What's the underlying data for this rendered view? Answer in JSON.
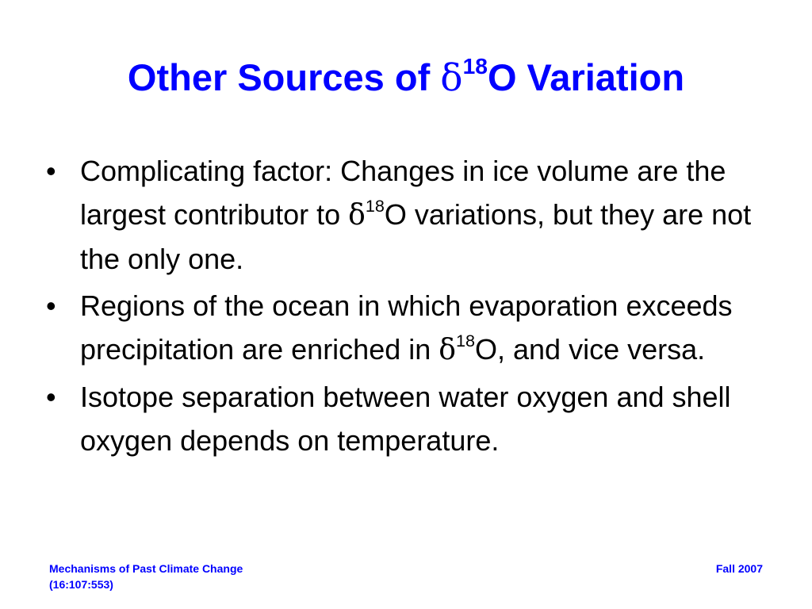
{
  "title": {
    "prefix": "Other Sources of ",
    "symbol": "δ",
    "superscript": "18",
    "suffix": "O Variation"
  },
  "bullets": [
    {
      "marker": "•",
      "before": "Complicating factor: Changes in ice volume are the largest contributor to ",
      "symbol": "δ",
      "superscript": "18",
      "after": "O variations, but they are not the only one."
    },
    {
      "marker": "•",
      "before": "Regions of the ocean in which evaporation exceeds precipitation are enriched in ",
      "symbol": "δ",
      "superscript": "18",
      "after": "O, and vice versa."
    },
    {
      "marker": "•",
      "text": "Isotope separation between water oxygen and shell oxygen depends on temperature."
    }
  ],
  "footer": {
    "left_line1": "Mechanisms of Past Climate Change",
    "left_line2": "(16:107:553)",
    "right": "Fall 2007"
  },
  "colors": {
    "title": "#0000ff",
    "body_text": "#000000",
    "footer": "#0000ff",
    "background": "#ffffff"
  }
}
